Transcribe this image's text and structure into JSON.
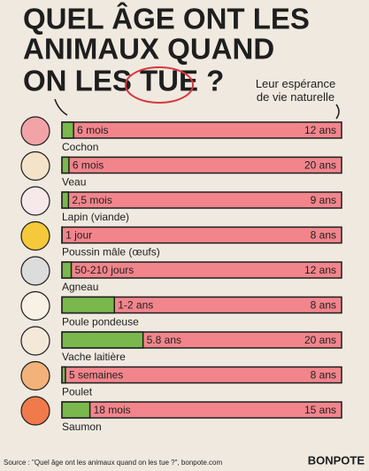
{
  "chart_data": {
    "type": "bar",
    "title": [
      "QUEL ÂGE ONT LES",
      "ANIMAUX QUAND",
      "ON LES TUE ?"
    ],
    "annotation": "Leur espérance de vie naturelle",
    "categories": [
      "Cochon",
      "Veau",
      "Lapin (viande)",
      "Poussin mâle (œufs)",
      "Agneau",
      "Poule pondeuse",
      "Vache laitière",
      "Poulet",
      "Saumon"
    ],
    "series": [
      {
        "color": "#7ab84e",
        "values": [
          0.5,
          0.5,
          0.21,
          0.003,
          0.4,
          1.5,
          5.8,
          0.1,
          1.5
        ],
        "value_labels": [
          "6 mois",
          "6 mois",
          "2,5 mois",
          "1 jour",
          "50-210 jours",
          "1-2 ans",
          "5.8 ans",
          "5 semaines",
          "18 mois"
        ]
      },
      {
        "color": "#f2858c",
        "values": [
          12,
          20,
          9,
          8,
          12,
          8,
          20,
          8,
          15
        ],
        "value_labels": [
          "12 ans",
          "20 ans",
          "9 ans",
          "8 ans",
          "12 ans",
          "8 ans",
          "20 ans",
          "8 ans",
          "15 ans"
        ]
      }
    ],
    "source": "Source : \"Quel âge ont les animaux quand on les tue ?\", bonpote.com",
    "logo": "BONPOTE"
  }
}
